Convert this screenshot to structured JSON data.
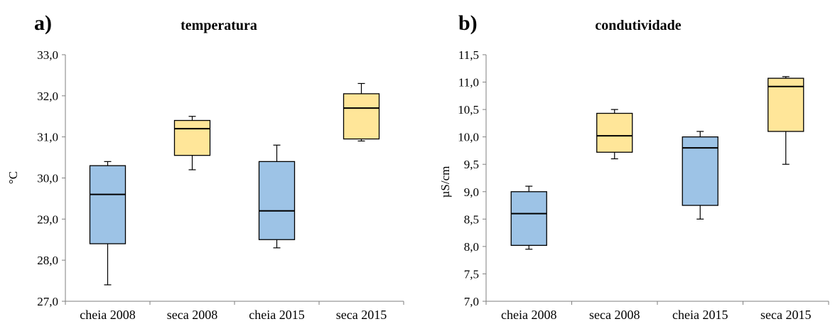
{
  "colors": {
    "cheia": "#9dc3e6",
    "seca": "#ffe699"
  },
  "chart_data": [
    {
      "type": "box",
      "panel_label": "a)",
      "title": "temperatura",
      "ylabel": "°C",
      "xlabel": "",
      "ylim": [
        27.0,
        33.0
      ],
      "yticks": [
        "27,0",
        "28,0",
        "29,0",
        "30,0",
        "31,0",
        "32,0",
        "33,0"
      ],
      "ytick_values": [
        27.0,
        28.0,
        29.0,
        30.0,
        31.0,
        32.0,
        33.0
      ],
      "categories": [
        "cheia 2008",
        "seca 2008",
        "cheia 2015",
        "seca 2015"
      ],
      "boxes": [
        {
          "category": "cheia 2008",
          "min": 27.4,
          "q1": 28.4,
          "median": 29.6,
          "q3": 30.3,
          "max": 30.4,
          "color": "cheia"
        },
        {
          "category": "seca 2008",
          "min": 30.2,
          "q1": 30.55,
          "median": 31.2,
          "q3": 31.4,
          "max": 31.5,
          "color": "seca"
        },
        {
          "category": "cheia 2015",
          "min": 28.3,
          "q1": 28.5,
          "median": 29.2,
          "q3": 30.4,
          "max": 30.8,
          "color": "cheia"
        },
        {
          "category": "seca 2015",
          "min": 30.9,
          "q1": 30.95,
          "median": 31.7,
          "q3": 32.05,
          "max": 32.3,
          "color": "seca"
        }
      ]
    },
    {
      "type": "box",
      "panel_label": "b)",
      "title": "condutividade",
      "ylabel": "µS/cm",
      "xlabel": "",
      "ylim": [
        7.0,
        11.5
      ],
      "yticks": [
        "7,0",
        "7,5",
        "8,0",
        "8,5",
        "9,0",
        "9,5",
        "10,0",
        "10,5",
        "11,0",
        "11,5"
      ],
      "ytick_values": [
        7.0,
        7.5,
        8.0,
        8.5,
        9.0,
        9.5,
        10.0,
        10.5,
        11.0,
        11.5
      ],
      "categories": [
        "cheia 2008",
        "seca 2008",
        "cheia 2015",
        "seca 2015"
      ],
      "boxes": [
        {
          "category": "cheia 2008",
          "min": 7.95,
          "q1": 8.02,
          "median": 8.6,
          "q3": 9.0,
          "max": 9.1,
          "color": "cheia"
        },
        {
          "category": "seca 2008",
          "min": 9.6,
          "q1": 9.72,
          "median": 10.02,
          "q3": 10.43,
          "max": 10.5,
          "color": "seca"
        },
        {
          "category": "cheia 2015",
          "min": 8.5,
          "q1": 8.75,
          "median": 9.8,
          "q3": 10.0,
          "max": 10.1,
          "color": "cheia"
        },
        {
          "category": "seca 2015",
          "min": 9.5,
          "q1": 10.1,
          "median": 10.92,
          "q3": 11.07,
          "max": 11.1,
          "color": "seca"
        }
      ]
    }
  ]
}
